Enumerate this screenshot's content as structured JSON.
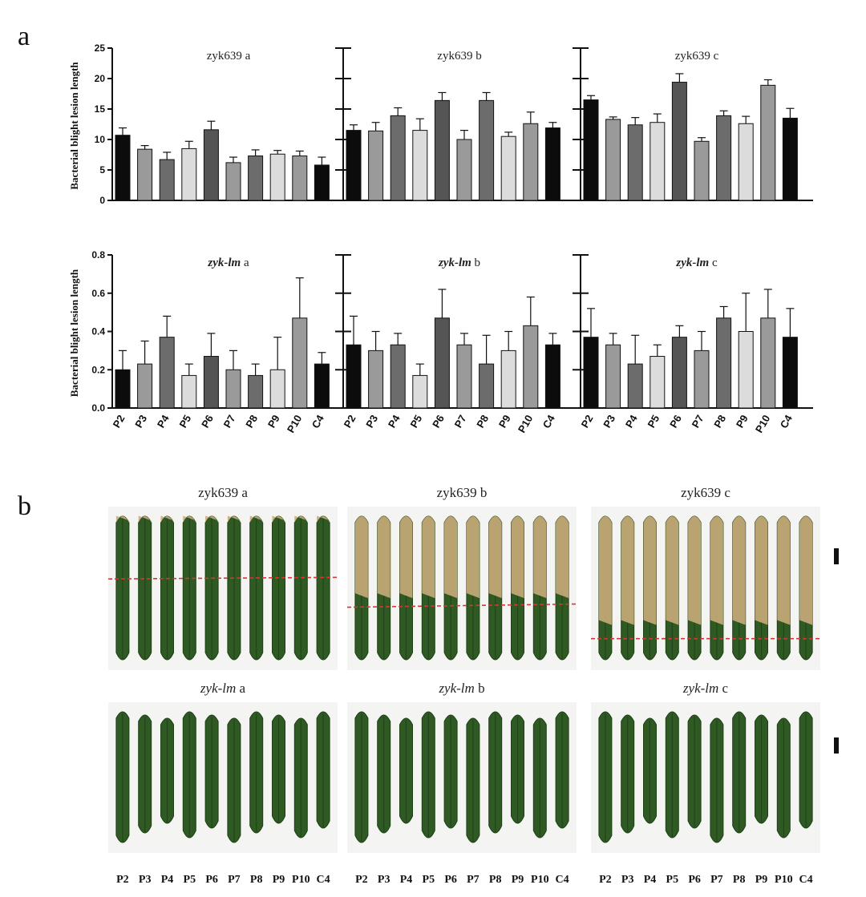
{
  "panel_labels": {
    "a": "a",
    "b": "b"
  },
  "colors": {
    "P2": "#0c0c0c",
    "P3": "#9a9a9a",
    "P4": "#6c6c6c",
    "P5": "#dcdcdc",
    "P6": "#555555",
    "P7": "#9a9a9a",
    "P8": "#6c6c6c",
    "P9": "#dcdcdc",
    "P10": "#9a9a9a",
    "C4": "#0c0c0c",
    "leaf_green": "#2f5a23",
    "leaf_dark": "#1f3f17",
    "lesion": "#c9ac7a",
    "redline": "#e53030"
  },
  "chart_data": [
    {
      "type": "bar",
      "group": "top",
      "title_main": "zyk639",
      "title_suffix": " a",
      "title_italic": false,
      "ylabel": "Bacterial blight lesion length",
      "categories": [
        "P2",
        "P3",
        "P4",
        "P5",
        "P6",
        "P7",
        "P8",
        "P9",
        "P10",
        "C4"
      ],
      "values": [
        10.7,
        8.4,
        6.7,
        8.5,
        11.6,
        6.2,
        7.3,
        7.6,
        7.3,
        5.8
      ],
      "errors": [
        1.2,
        0.6,
        1.2,
        1.2,
        1.4,
        0.9,
        1.0,
        0.6,
        0.8,
        1.3
      ],
      "ylim": [
        0,
        25
      ],
      "ticks": [
        "0",
        "5",
        "10",
        "15",
        "20",
        "25"
      ],
      "tick_values": [
        0,
        5,
        10,
        15,
        20,
        25
      ]
    },
    {
      "type": "bar",
      "group": "top",
      "title_main": "zyk639",
      "title_suffix": " b",
      "title_italic": false,
      "categories": [
        "P2",
        "P3",
        "P4",
        "P5",
        "P6",
        "P7",
        "P8",
        "P9",
        "P10",
        "C4"
      ],
      "values": [
        11.5,
        11.4,
        13.9,
        11.5,
        16.4,
        10.0,
        16.4,
        10.5,
        12.6,
        11.9
      ],
      "errors": [
        0.9,
        1.4,
        1.3,
        1.9,
        1.3,
        1.5,
        1.3,
        0.7,
        1.9,
        0.9
      ],
      "ylim": [
        0,
        25
      ],
      "tick_values": [
        0,
        5,
        10,
        15,
        20,
        25
      ]
    },
    {
      "type": "bar",
      "group": "top",
      "title_main": "zyk639",
      "title_suffix": " c",
      "title_italic": false,
      "categories": [
        "P2",
        "P3",
        "P4",
        "P5",
        "P6",
        "P7",
        "P8",
        "P9",
        "P10",
        "C4"
      ],
      "values": [
        16.5,
        13.3,
        12.4,
        12.8,
        19.4,
        9.7,
        13.9,
        12.6,
        18.9,
        13.5
      ],
      "errors": [
        0.7,
        0.4,
        1.2,
        1.4,
        1.4,
        0.6,
        0.8,
        1.2,
        0.9,
        1.6
      ],
      "ylim": [
        0,
        25
      ],
      "tick_values": [
        0,
        5,
        10,
        15,
        20,
        25
      ]
    },
    {
      "type": "bar",
      "group": "bottom",
      "title_main": "zyk-lm",
      "title_suffix": " a",
      "title_italic": true,
      "ylabel": "Bacterial blight lesion length",
      "categories": [
        "P2",
        "P3",
        "P4",
        "P5",
        "P6",
        "P7",
        "P8",
        "P9",
        "P10",
        "C4"
      ],
      "values": [
        0.2,
        0.23,
        0.37,
        0.17,
        0.27,
        0.2,
        0.17,
        0.2,
        0.47,
        0.23
      ],
      "errors": [
        0.1,
        0.12,
        0.11,
        0.06,
        0.12,
        0.1,
        0.06,
        0.17,
        0.21,
        0.06
      ],
      "ylim": [
        0,
        0.8
      ],
      "ticks": [
        "0.0",
        "0.2",
        "0.4",
        "0.6",
        "0.8"
      ],
      "tick_values": [
        0,
        0.2,
        0.4,
        0.6,
        0.8
      ]
    },
    {
      "type": "bar",
      "group": "bottom",
      "title_main": "zyk-lm",
      "title_suffix": " b",
      "title_italic": true,
      "categories": [
        "P2",
        "P3",
        "P4",
        "P5",
        "P6",
        "P7",
        "P8",
        "P9",
        "P10",
        "C4"
      ],
      "values": [
        0.33,
        0.3,
        0.33,
        0.17,
        0.47,
        0.33,
        0.23,
        0.3,
        0.43,
        0.33
      ],
      "errors": [
        0.15,
        0.1,
        0.06,
        0.06,
        0.15,
        0.06,
        0.15,
        0.1,
        0.15,
        0.06
      ],
      "ylim": [
        0,
        0.8
      ],
      "tick_values": [
        0,
        0.2,
        0.4,
        0.6,
        0.8
      ]
    },
    {
      "type": "bar",
      "group": "bottom",
      "title_main": "zyk-lm",
      "title_suffix": " c",
      "title_italic": true,
      "categories": [
        "P2",
        "P3",
        "P4",
        "P5",
        "P6",
        "P7",
        "P8",
        "P9",
        "P10",
        "C4"
      ],
      "values": [
        0.37,
        0.33,
        0.23,
        0.27,
        0.37,
        0.3,
        0.47,
        0.4,
        0.47,
        0.37
      ],
      "errors": [
        0.15,
        0.06,
        0.15,
        0.06,
        0.06,
        0.1,
        0.06,
        0.2,
        0.15,
        0.15
      ],
      "ylim": [
        0,
        0.8
      ],
      "tick_values": [
        0,
        0.2,
        0.4,
        0.6,
        0.8
      ]
    }
  ],
  "photos": [
    {
      "title_main": "zyk639",
      "title_suffix": " a",
      "title_italic": false,
      "lesion_fraction": 0.04,
      "redline_fraction": 0.44
    },
    {
      "title_main": "zyk639",
      "title_suffix": " b",
      "title_italic": false,
      "lesion_fraction": 0.56,
      "redline_fraction": 0.62
    },
    {
      "title_main": "zyk639",
      "title_suffix": " c",
      "title_italic": false,
      "lesion_fraction": 0.74,
      "redline_fraction": 0.82
    },
    {
      "title_main": "zyk-lm",
      "title_suffix": " a",
      "title_italic": true,
      "lesion_fraction": 0,
      "redline_fraction": null
    },
    {
      "title_main": "zyk-lm",
      "title_suffix": " b",
      "title_italic": true,
      "lesion_fraction": 0,
      "redline_fraction": null
    },
    {
      "title_main": "zyk-lm",
      "title_suffix": " c",
      "title_italic": true,
      "lesion_fraction": 0,
      "redline_fraction": null
    }
  ],
  "leaf_labels": [
    "P2",
    "P3",
    "P4",
    "P5",
    "P6",
    "P7",
    "P8",
    "P9",
    "P10",
    "C4"
  ]
}
